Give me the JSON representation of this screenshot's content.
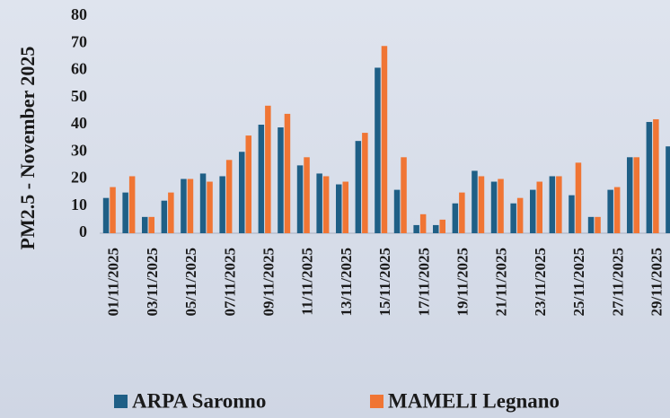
{
  "chart_data": {
    "type": "bar",
    "ylabel": "PM2.5 - November 2025",
    "categories": [
      "01/11/2025",
      null,
      "03/11/2025",
      null,
      "05/11/2025",
      null,
      "07/11/2025",
      null,
      "09/11/2025",
      null,
      "11/11/2025",
      null,
      "13/11/2025",
      null,
      "15/11/2025",
      null,
      "17/11/2025",
      null,
      "19/11/2025",
      null,
      "21/11/2025",
      null,
      "23/11/2025",
      null,
      "25/11/2025",
      null,
      "27/11/2025",
      null,
      "29/11/2025",
      null
    ],
    "series": [
      {
        "name": "ARPA Saronno",
        "color": "#1f5f86",
        "values": [
          13,
          15,
          6,
          12,
          20,
          22,
          21,
          30,
          40,
          39,
          25,
          22,
          18,
          34,
          61,
          16,
          3,
          3,
          11,
          23,
          19,
          11,
          16,
          21,
          14,
          6,
          16,
          28,
          41,
          32
        ]
      },
      {
        "name": "MAMELI Legnano",
        "color": "#f07534",
        "values": [
          17,
          21,
          6,
          15,
          20,
          19,
          27,
          36,
          47,
          44,
          28,
          21,
          19,
          37,
          69,
          28,
          7,
          5,
          15,
          21,
          20,
          13,
          19,
          21,
          26,
          6,
          17,
          28,
          42,
          null
        ]
      }
    ],
    "ylim": [
      0,
      80
    ],
    "yticks": [
      0,
      10,
      20,
      30,
      40,
      50,
      60,
      70,
      80
    ],
    "grid": false,
    "legend": "bottom"
  }
}
